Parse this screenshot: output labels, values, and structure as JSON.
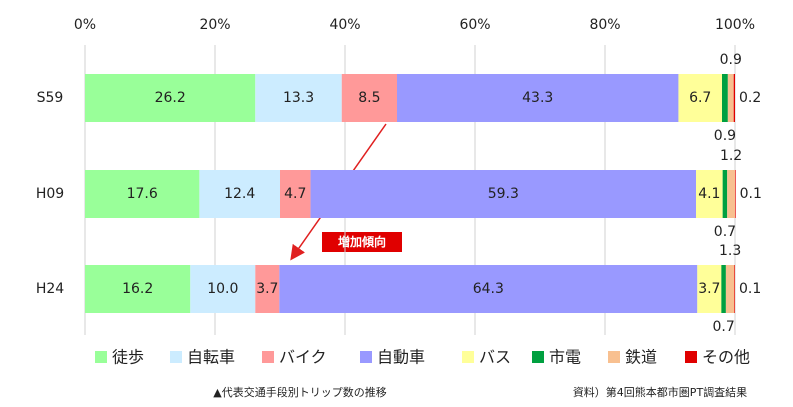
{
  "chart_data": {
    "type": "stacked-bar-horizontal",
    "categories": [
      "S59",
      "H09",
      "H24"
    ],
    "xlim": [
      0,
      100
    ],
    "xticks": [
      {
        "value": 0,
        "label": "0%"
      },
      {
        "value": 20,
        "label": "20%"
      },
      {
        "value": 40,
        "label": "40%"
      },
      {
        "value": 60,
        "label": "60%"
      },
      {
        "value": 80,
        "label": "80%"
      },
      {
        "value": 100,
        "label": "100%"
      }
    ],
    "grid": true,
    "series": [
      {
        "name": "徒歩",
        "color": "#99ff99",
        "values": [
          26.2,
          17.6,
          16.2
        ]
      },
      {
        "name": "自転車",
        "color": "#ccecff",
        "values": [
          13.3,
          12.4,
          10.0
        ],
        "value_labels": [
          "13.3",
          "12.4",
          "10.0"
        ]
      },
      {
        "name": "バイク",
        "color": "#ff9999",
        "values": [
          8.5,
          4.7,
          3.7
        ]
      },
      {
        "name": "自動車",
        "color": "#9999ff",
        "values": [
          43.3,
          59.3,
          64.3
        ]
      },
      {
        "name": "バス",
        "color": "#ffff99",
        "values": [
          6.7,
          4.1,
          3.7
        ]
      },
      {
        "name": "市電",
        "color": "#00a040",
        "values": [
          0.9,
          0.7,
          0.7
        ]
      },
      {
        "name": "鉄道",
        "color": "#f8c090",
        "values": [
          0.9,
          1.2,
          1.3
        ]
      },
      {
        "name": "その他",
        "color": "#e00000",
        "values": [
          0.2,
          0.1,
          0.1
        ]
      }
    ],
    "annotation": "増加傾向",
    "footnote": "▲代表交通手段別トリップ数の推移",
    "source": "資料）第4回熊本都市圏PT調査結果"
  }
}
